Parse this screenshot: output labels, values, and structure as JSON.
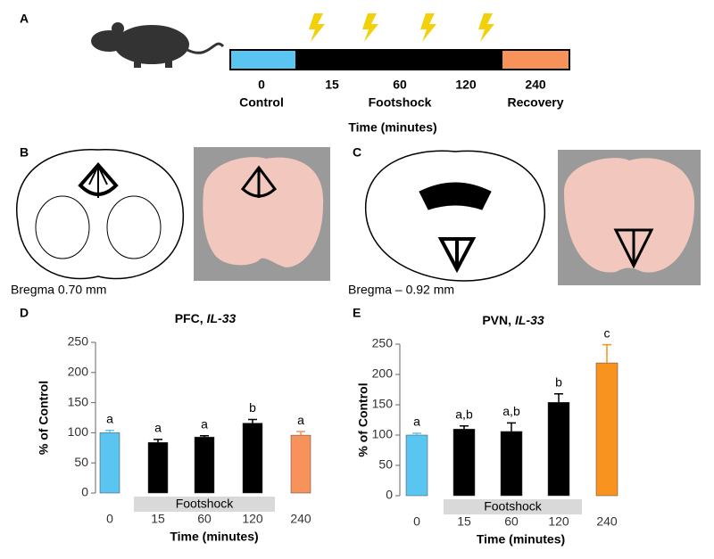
{
  "panel_labels": [
    "A",
    "B",
    "C",
    "D",
    "E"
  ],
  "timeline": {
    "ticks": [
      "0",
      "15",
      "60",
      "120",
      "240"
    ],
    "phases": [
      "Control",
      "Footshock",
      "Recovery"
    ],
    "xlabel": "Time (minutes)"
  },
  "sections": [
    "Bregma 0.70 mm",
    "Bregma – 0.92 mm"
  ],
  "chart_data": [
    {
      "type": "bar",
      "title": "PFC,",
      "title_gene": "IL-33",
      "ylabel": "% of Control",
      "xlabel": "Time (minutes)",
      "band_label": "Footshock",
      "categories": [
        "0",
        "15",
        "60",
        "120",
        "240"
      ],
      "values": [
        100,
        84,
        93,
        116,
        96
      ],
      "errors": [
        4,
        5,
        2,
        6,
        6
      ],
      "colors": [
        "#5bc5f2",
        "#000000",
        "#000000",
        "#000000",
        "#f7925a"
      ],
      "annotations": [
        "a",
        "a",
        "a",
        "b",
        "a"
      ],
      "ylim": [
        0,
        250
      ],
      "yticks": [
        0,
        50,
        100,
        150,
        200,
        250
      ]
    },
    {
      "type": "bar",
      "title": "PVN,",
      "title_gene": "IL-33",
      "ylabel": "% of  Control",
      "xlabel": "Time (minutes)",
      "band_label": "Footshock",
      "categories": [
        "0",
        "15",
        "60",
        "120",
        "240"
      ],
      "values": [
        100,
        110,
        106,
        154,
        219
      ],
      "errors": [
        3,
        5,
        14,
        14,
        30
      ],
      "colors": [
        "#5bc5f2",
        "#000000",
        "#000000",
        "#000000",
        "#f7931e"
      ],
      "annotations": [
        "a",
        "a,b",
        "a,b",
        "b",
        "c"
      ],
      "ylim": [
        0,
        250
      ],
      "yticks": [
        0,
        50,
        100,
        150,
        200,
        250
      ]
    }
  ]
}
